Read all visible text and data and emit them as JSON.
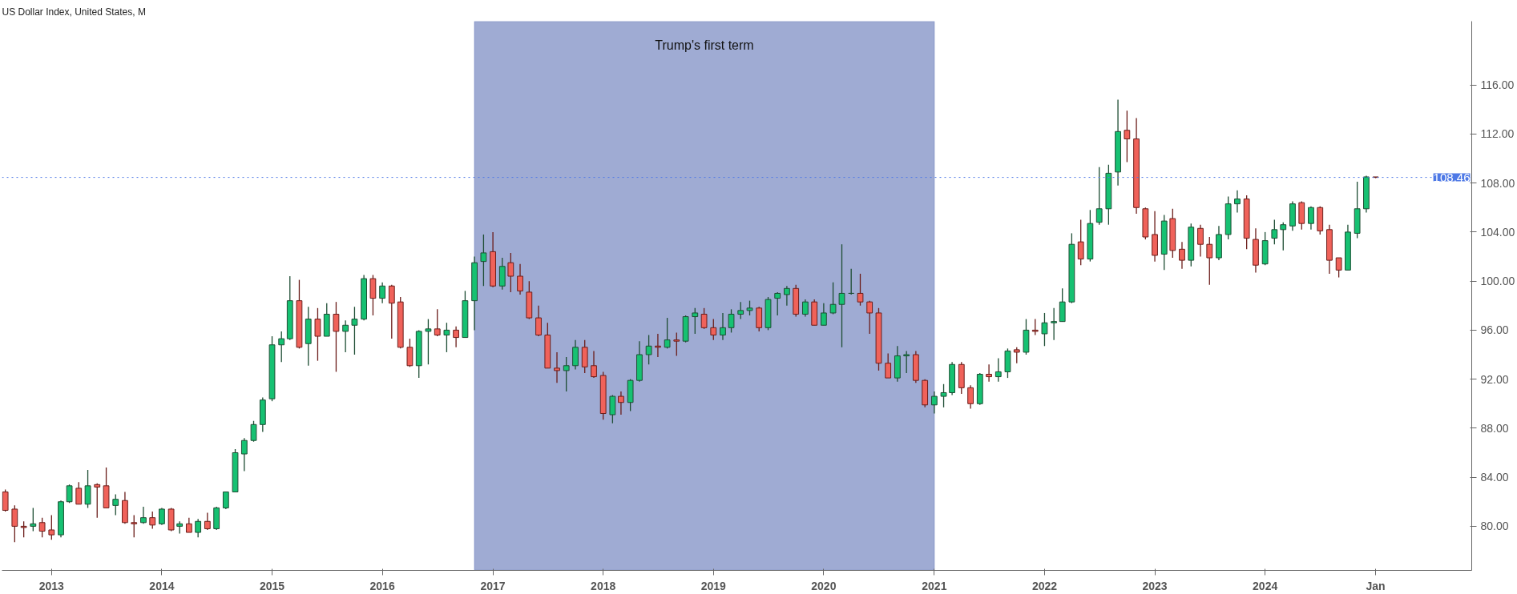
{
  "chart_data": {
    "type": "candlestick",
    "title": "US Dollar Index, United States, M",
    "x": [
      "2012-08",
      "2012-09",
      "2012-10",
      "2012-11",
      "2012-12",
      "2013-01",
      "2013-02",
      "2013-03",
      "2013-04",
      "2013-05",
      "2013-06",
      "2013-07",
      "2013-08",
      "2013-09",
      "2013-10",
      "2013-11",
      "2013-12",
      "2014-01",
      "2014-02",
      "2014-03",
      "2014-04",
      "2014-05",
      "2014-06",
      "2014-07",
      "2014-08",
      "2014-09",
      "2014-10",
      "2014-11",
      "2014-12",
      "2015-01",
      "2015-02",
      "2015-03",
      "2015-04",
      "2015-05",
      "2015-06",
      "2015-07",
      "2015-08",
      "2015-09",
      "2015-10",
      "2015-11",
      "2015-12",
      "2016-01",
      "2016-02",
      "2016-03",
      "2016-04",
      "2016-05",
      "2016-06",
      "2016-07",
      "2016-08",
      "2016-09",
      "2016-10",
      "2016-11",
      "2016-12",
      "2017-01",
      "2017-02",
      "2017-03",
      "2017-04",
      "2017-05",
      "2017-06",
      "2017-07",
      "2017-08",
      "2017-09",
      "2017-10",
      "2017-11",
      "2017-12",
      "2018-01",
      "2018-02",
      "2018-03",
      "2018-04",
      "2018-05",
      "2018-06",
      "2018-07",
      "2018-08",
      "2018-09",
      "2018-10",
      "2018-11",
      "2018-12",
      "2019-01",
      "2019-02",
      "2019-03",
      "2019-04",
      "2019-05",
      "2019-06",
      "2019-07",
      "2019-08",
      "2019-09",
      "2019-10",
      "2019-11",
      "2019-12",
      "2020-01",
      "2020-02",
      "2020-03",
      "2020-04",
      "2020-05",
      "2020-06",
      "2020-07",
      "2020-08",
      "2020-09",
      "2020-10",
      "2020-11",
      "2020-12",
      "2021-01",
      "2021-02",
      "2021-03",
      "2021-04",
      "2021-05",
      "2021-06",
      "2021-07",
      "2021-08",
      "2021-09",
      "2021-10",
      "2021-11",
      "2021-12",
      "2022-01",
      "2022-02",
      "2022-03",
      "2022-04",
      "2022-05",
      "2022-06",
      "2022-07",
      "2022-08",
      "2022-09",
      "2022-10",
      "2022-11",
      "2022-12",
      "2023-01",
      "2023-02",
      "2023-03",
      "2023-04",
      "2023-05",
      "2023-06",
      "2023-07",
      "2023-08",
      "2023-09",
      "2023-10",
      "2023-11",
      "2023-12",
      "2024-01",
      "2024-02",
      "2024-03",
      "2024-04",
      "2024-05",
      "2024-06",
      "2024-07",
      "2024-08",
      "2024-09",
      "2024-10",
      "2024-11",
      "2024-12",
      "2025-01"
    ],
    "ohlc": [
      [
        82.8,
        83.0,
        81.2,
        81.3
      ],
      [
        81.4,
        81.7,
        78.7,
        80.0
      ],
      [
        80.0,
        80.4,
        79.1,
        79.9
      ],
      [
        80.0,
        81.5,
        79.6,
        80.2
      ],
      [
        80.3,
        80.7,
        79.1,
        79.6
      ],
      [
        79.7,
        80.9,
        78.9,
        79.3
      ],
      [
        79.3,
        82.1,
        79.1,
        82.0
      ],
      [
        82.0,
        83.4,
        81.9,
        83.3
      ],
      [
        83.1,
        83.6,
        81.8,
        81.8
      ],
      [
        81.8,
        84.6,
        81.5,
        83.3
      ],
      [
        83.4,
        83.5,
        80.7,
        83.2
      ],
      [
        83.3,
        84.8,
        81.5,
        81.5
      ],
      [
        81.7,
        82.6,
        80.9,
        82.2
      ],
      [
        82.1,
        82.8,
        80.2,
        80.3
      ],
      [
        80.3,
        80.9,
        79.1,
        80.2
      ],
      [
        80.3,
        81.6,
        80.2,
        80.7
      ],
      [
        80.7,
        81.2,
        79.8,
        80.1
      ],
      [
        80.2,
        81.5,
        80.1,
        81.4
      ],
      [
        81.4,
        81.5,
        79.6,
        79.7
      ],
      [
        80.0,
        80.4,
        79.4,
        80.2
      ],
      [
        80.2,
        80.7,
        79.5,
        79.5
      ],
      [
        79.5,
        80.6,
        79.1,
        80.4
      ],
      [
        80.4,
        81.1,
        79.7,
        79.8
      ],
      [
        79.8,
        81.6,
        79.7,
        81.5
      ],
      [
        81.5,
        82.8,
        81.4,
        82.8
      ],
      [
        82.8,
        86.3,
        82.8,
        86.0
      ],
      [
        85.9,
        87.2,
        84.5,
        87.0
      ],
      [
        87.0,
        88.6,
        86.9,
        88.3
      ],
      [
        88.3,
        90.5,
        87.7,
        90.3
      ],
      [
        90.4,
        95.5,
        90.2,
        94.8
      ],
      [
        94.8,
        95.9,
        93.4,
        95.3
      ],
      [
        95.3,
        100.4,
        95.2,
        98.4
      ],
      [
        98.4,
        100.1,
        94.5,
        94.6
      ],
      [
        94.9,
        97.9,
        93.1,
        96.9
      ],
      [
        96.9,
        97.8,
        93.5,
        95.5
      ],
      [
        95.5,
        98.2,
        95.5,
        97.3
      ],
      [
        97.3,
        98.3,
        92.6,
        95.9
      ],
      [
        95.9,
        96.8,
        94.2,
        96.4
      ],
      [
        96.4,
        97.9,
        94.0,
        96.9
      ],
      [
        96.9,
        100.5,
        96.8,
        100.2
      ],
      [
        100.2,
        100.5,
        97.2,
        98.6
      ],
      [
        98.6,
        99.9,
        98.2,
        99.6
      ],
      [
        99.6,
        99.7,
        95.3,
        98.2
      ],
      [
        98.3,
        98.7,
        94.5,
        94.6
      ],
      [
        94.6,
        95.3,
        93.0,
        93.1
      ],
      [
        93.1,
        96.0,
        92.1,
        95.9
      ],
      [
        95.9,
        96.9,
        93.2,
        96.1
      ],
      [
        96.1,
        97.7,
        95.5,
        95.6
      ],
      [
        95.6,
        96.6,
        94.2,
        96.0
      ],
      [
        96.0,
        96.3,
        94.6,
        95.4
      ],
      [
        95.4,
        99.2,
        95.4,
        98.4
      ],
      [
        98.4,
        102.0,
        96.0,
        101.5
      ],
      [
        101.6,
        103.8,
        99.6,
        102.3
      ],
      [
        102.4,
        104.0,
        99.5,
        99.6
      ],
      [
        99.6,
        101.9,
        99.3,
        101.2
      ],
      [
        101.5,
        102.3,
        99.1,
        100.4
      ],
      [
        100.4,
        101.4,
        98.9,
        99.2
      ],
      [
        99.1,
        100.0,
        96.9,
        97.0
      ],
      [
        97.0,
        98.0,
        95.5,
        95.6
      ],
      [
        95.6,
        96.6,
        92.9,
        92.9
      ],
      [
        92.9,
        94.2,
        91.7,
        92.7
      ],
      [
        92.7,
        93.8,
        91.0,
        93.1
      ],
      [
        93.1,
        95.2,
        92.8,
        94.6
      ],
      [
        94.6,
        95.2,
        92.5,
        93.0
      ],
      [
        93.1,
        94.3,
        92.1,
        92.2
      ],
      [
        92.3,
        92.6,
        88.7,
        89.2
      ],
      [
        89.1,
        90.7,
        88.4,
        90.6
      ],
      [
        90.6,
        91.0,
        89.1,
        90.1
      ],
      [
        90.1,
        92.0,
        89.4,
        91.9
      ],
      [
        91.9,
        95.1,
        91.8,
        94.0
      ],
      [
        94.0,
        95.6,
        93.2,
        94.7
      ],
      [
        94.7,
        95.7,
        93.8,
        94.6
      ],
      [
        94.6,
        97.0,
        94.5,
        95.2
      ],
      [
        95.2,
        95.8,
        93.9,
        95.1
      ],
      [
        95.1,
        97.2,
        95.0,
        97.1
      ],
      [
        97.1,
        97.8,
        95.7,
        97.4
      ],
      [
        97.3,
        97.8,
        96.1,
        96.2
      ],
      [
        96.2,
        96.9,
        95.2,
        95.6
      ],
      [
        95.6,
        97.4,
        95.2,
        96.2
      ],
      [
        96.2,
        97.7,
        95.8,
        97.3
      ],
      [
        97.3,
        98.3,
        96.9,
        97.6
      ],
      [
        97.6,
        98.4,
        97.2,
        97.8
      ],
      [
        97.8,
        97.9,
        95.9,
        96.2
      ],
      [
        96.2,
        98.7,
        96.0,
        98.5
      ],
      [
        98.6,
        99.1,
        97.2,
        99.0
      ],
      [
        98.9,
        99.6,
        98.0,
        99.4
      ],
      [
        99.4,
        99.7,
        97.1,
        97.3
      ],
      [
        97.3,
        98.5,
        97.1,
        98.3
      ],
      [
        98.3,
        98.5,
        96.4,
        96.4
      ],
      [
        96.4,
        98.2,
        96.4,
        97.4
      ],
      [
        97.4,
        99.9,
        97.3,
        98.1
      ],
      [
        98.1,
        103.0,
        94.6,
        99.0
      ],
      [
        99.0,
        101.0,
        98.9,
        99.0
      ],
      [
        99.0,
        100.6,
        98.0,
        98.3
      ],
      [
        98.3,
        98.4,
        95.7,
        97.4
      ],
      [
        97.4,
        97.8,
        92.7,
        93.3
      ],
      [
        93.3,
        94.1,
        92.1,
        92.1
      ],
      [
        92.1,
        94.7,
        91.8,
        93.9
      ],
      [
        93.9,
        94.3,
        92.5,
        94.0
      ],
      [
        94.0,
        94.3,
        91.7,
        91.9
      ],
      [
        91.9,
        92.0,
        89.7,
        89.9
      ],
      [
        89.9,
        91.0,
        89.2,
        90.6
      ],
      [
        90.6,
        91.6,
        89.7,
        90.9
      ],
      [
        90.9,
        93.4,
        90.7,
        93.2
      ],
      [
        93.2,
        93.4,
        90.8,
        91.3
      ],
      [
        91.3,
        91.5,
        89.6,
        90.0
      ],
      [
        90.0,
        92.5,
        89.9,
        92.4
      ],
      [
        92.4,
        93.2,
        91.8,
        92.2
      ],
      [
        92.2,
        93.7,
        91.8,
        92.6
      ],
      [
        92.6,
        94.5,
        92.1,
        94.3
      ],
      [
        94.4,
        94.6,
        93.3,
        94.2
      ],
      [
        94.2,
        96.9,
        94.0,
        96.0
      ],
      [
        96.0,
        96.9,
        95.6,
        95.9
      ],
      [
        95.7,
        97.4,
        94.7,
        96.6
      ],
      [
        96.6,
        97.8,
        95.2,
        96.7
      ],
      [
        96.7,
        99.4,
        96.7,
        98.3
      ],
      [
        98.3,
        103.9,
        98.2,
        103.0
      ],
      [
        103.2,
        105.0,
        101.3,
        101.8
      ],
      [
        101.8,
        105.8,
        101.6,
        104.7
      ],
      [
        104.8,
        109.3,
        104.6,
        105.9
      ],
      [
        105.9,
        109.5,
        104.6,
        108.8
      ],
      [
        108.9,
        114.8,
        107.8,
        112.2
      ],
      [
        112.3,
        113.9,
        109.7,
        111.6
      ],
      [
        111.6,
        113.3,
        105.5,
        106.0
      ],
      [
        105.9,
        106.0,
        103.4,
        103.6
      ],
      [
        103.8,
        105.7,
        101.6,
        102.1
      ],
      [
        102.2,
        105.4,
        100.9,
        104.9
      ],
      [
        105.1,
        105.9,
        101.9,
        102.5
      ],
      [
        102.6,
        103.2,
        101.0,
        101.7
      ],
      [
        101.7,
        104.7,
        101.2,
        104.4
      ],
      [
        104.3,
        104.6,
        102.0,
        103.0
      ],
      [
        103.0,
        103.6,
        99.7,
        101.9
      ],
      [
        101.9,
        104.5,
        101.7,
        103.8
      ],
      [
        103.8,
        106.9,
        103.4,
        106.3
      ],
      [
        106.3,
        107.4,
        105.6,
        106.7
      ],
      [
        106.7,
        107.0,
        102.6,
        103.5
      ],
      [
        103.4,
        104.3,
        100.7,
        101.3
      ],
      [
        101.4,
        104.0,
        101.3,
        103.3
      ],
      [
        103.5,
        105.0,
        103.0,
        104.2
      ],
      [
        104.2,
        104.8,
        102.5,
        104.6
      ],
      [
        104.5,
        106.5,
        104.1,
        106.3
      ],
      [
        106.4,
        106.5,
        104.2,
        104.7
      ],
      [
        104.7,
        106.1,
        104.2,
        106.0
      ],
      [
        106.0,
        106.1,
        103.8,
        104.1
      ],
      [
        104.2,
        104.6,
        100.6,
        101.7
      ],
      [
        101.9,
        101.9,
        100.3,
        100.9
      ],
      [
        100.9,
        104.6,
        100.9,
        104.0
      ],
      [
        103.9,
        108.1,
        103.5,
        105.9
      ],
      [
        105.9,
        108.6,
        105.6,
        108.5
      ],
      [
        108.5,
        108.5,
        108.4,
        108.46
      ]
    ],
    "xlim": [
      "2012-07-21",
      "2025-11-15"
    ],
    "xticks": [
      {
        "value": "2013-01-01",
        "label": "2013"
      },
      {
        "value": "2014-01-01",
        "label": "2014"
      },
      {
        "value": "2015-01-01",
        "label": "2015"
      },
      {
        "value": "2016-01-01",
        "label": "2016"
      },
      {
        "value": "2017-01-01",
        "label": "2017"
      },
      {
        "value": "2018-01-01",
        "label": "2018"
      },
      {
        "value": "2019-01-01",
        "label": "2019"
      },
      {
        "value": "2020-01-01",
        "label": "2020"
      },
      {
        "value": "2021-01-01",
        "label": "2021"
      },
      {
        "value": "2022-01-01",
        "label": "2022"
      },
      {
        "value": "2023-01-01",
        "label": "2023"
      },
      {
        "value": "2024-01-01",
        "label": "2024"
      },
      {
        "value": "2025-01-01",
        "label": "Jan"
      }
    ],
    "ylim": [
      76.4,
      121.2
    ],
    "yticks": [
      {
        "value": 80,
        "label": "80.00"
      },
      {
        "value": 84,
        "label": "84.00"
      },
      {
        "value": 88,
        "label": "88.00"
      },
      {
        "value": 92,
        "label": "92.00"
      },
      {
        "value": 96,
        "label": "96.00"
      },
      {
        "value": 100,
        "label": "100.00"
      },
      {
        "value": 104,
        "label": "104.00"
      },
      {
        "value": 108,
        "label": "108.00"
      },
      {
        "value": 112,
        "label": "112.00"
      },
      {
        "value": 116,
        "label": "116.00"
      }
    ],
    "ref_lines": [
      {
        "axis": "y",
        "value": 108.46,
        "label": "108.46",
        "color": "#4e79e6",
        "line_style": "dotted"
      }
    ],
    "bands": [
      {
        "axis": "x",
        "from": "2016-11",
        "to": "2021-01",
        "label": "Trump's first term",
        "color": "#3f58a8"
      }
    ],
    "grid": false
  }
}
